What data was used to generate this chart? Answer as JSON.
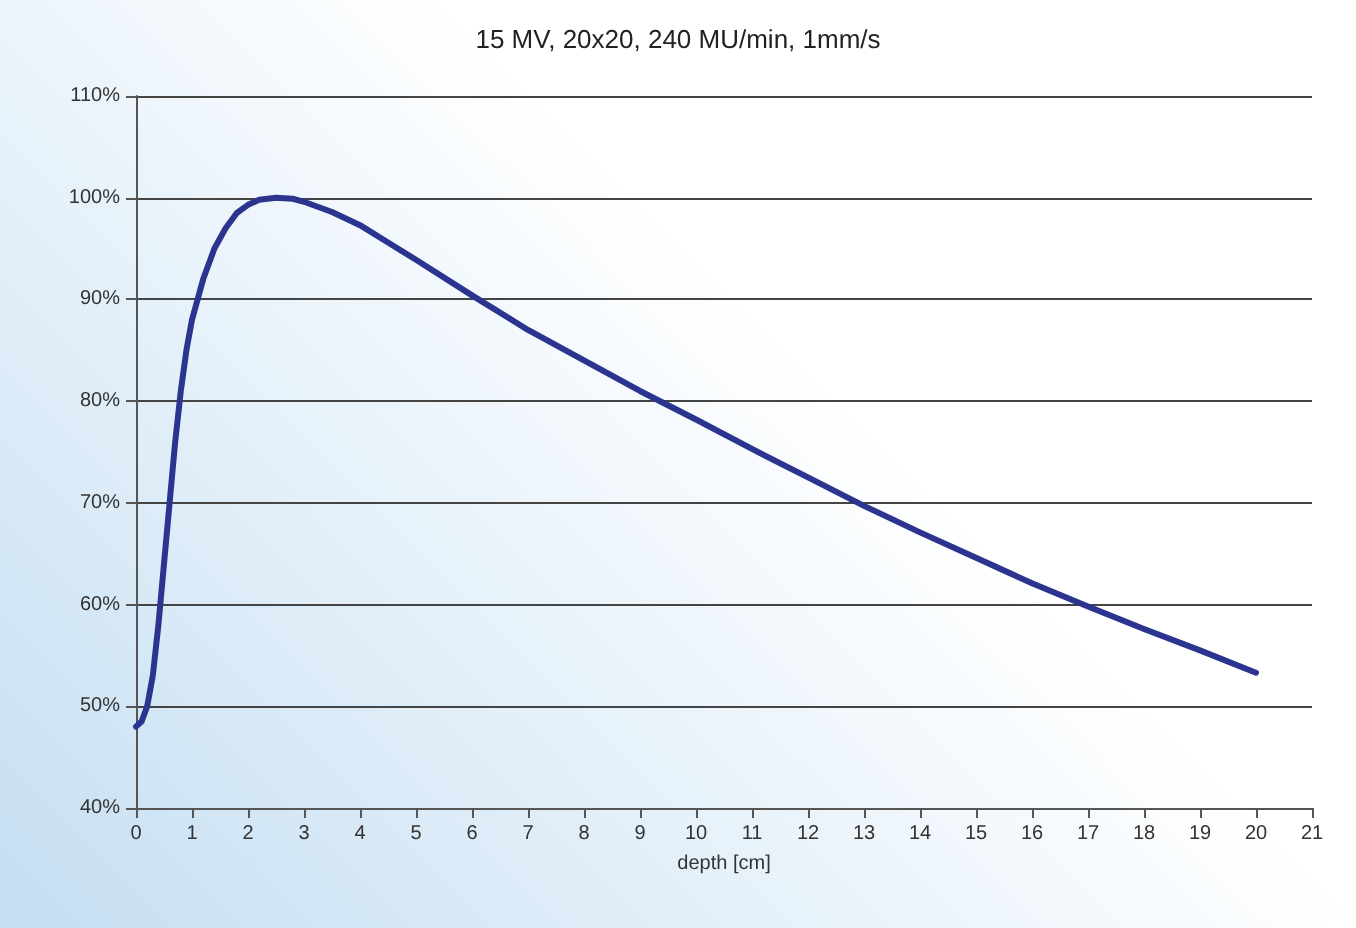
{
  "chart_data": {
    "type": "line",
    "title": "15 MV, 20x20, 240 MU/min, 1mm/s",
    "xlabel": "depth [cm]",
    "x": [
      0,
      0.1,
      0.2,
      0.3,
      0.4,
      0.5,
      0.6,
      0.7,
      0.8,
      0.9,
      1,
      1.2,
      1.4,
      1.6,
      1.8,
      2,
      2.2,
      2.5,
      2.8,
      3,
      3.5,
      4,
      4.5,
      5,
      6,
      7,
      8,
      9,
      10,
      11,
      12,
      13,
      14,
      15,
      16,
      17,
      18,
      19,
      20
    ],
    "series": [
      {
        "color": "#2b3590",
        "values": [
          48,
          48.5,
          50,
          53,
          58,
          64,
          70,
          76,
          81,
          85,
          88,
          92,
          95,
          97,
          98.5,
          99.3,
          99.8,
          100,
          99.9,
          99.6,
          98.6,
          97.3,
          95.6,
          93.9,
          90.4,
          87,
          84,
          81,
          78.2,
          75.3,
          72.5,
          69.7,
          67.1,
          64.6,
          62.1,
          59.8,
          57.6,
          55.5,
          53.3
        ]
      }
    ],
    "xlim": [
      0,
      21
    ],
    "xticks": [
      0,
      1,
      2,
      3,
      4,
      5,
      6,
      7,
      8,
      9,
      10,
      11,
      12,
      13,
      14,
      15,
      16,
      17,
      18,
      19,
      20,
      21
    ],
    "ylim": [
      40,
      110
    ],
    "yticks": [
      {
        "value": 40,
        "label": "40%"
      },
      {
        "value": 50,
        "label": "50%"
      },
      {
        "value": 60,
        "label": "60%"
      },
      {
        "value": 70,
        "label": "70%"
      },
      {
        "value": 80,
        "label": "80%"
      },
      {
        "value": 90,
        "label": "90%"
      },
      {
        "value": 100,
        "label": "100%"
      },
      {
        "value": 110,
        "label": "110%"
      }
    ],
    "grid": "y",
    "marker": "none",
    "line_style": "solid"
  }
}
